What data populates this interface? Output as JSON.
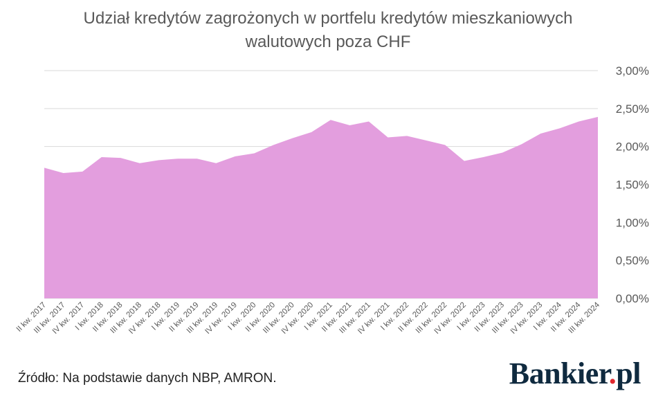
{
  "chart_data": {
    "type": "area",
    "title_line1": "Udział kredytów zagrożonych w portfelu kredytów mieszkaniowych",
    "title_line2": "walutowych poza CHF",
    "categories": [
      "II kw. 2017",
      "III kw. 2017",
      "IV kw. 2017",
      "I kw. 2018",
      "II kw. 2018",
      "III kw. 2018",
      "IV kw. 2018",
      "I kw. 2019",
      "II kw. 2019",
      "III kw. 2019",
      "IV kw. 2019",
      "I kw. 2020",
      "II kw. 2020",
      "III kw. 2020",
      "IV kw. 2020",
      "I kw. 2021",
      "II kw. 2021",
      "III kw. 2021",
      "IV kw. 2021",
      "I kw. 2022",
      "II kw. 2022",
      "III kw. 2022",
      "IV kw. 2022",
      "I kw. 2023",
      "II kw. 2023",
      "III kw. 2023",
      "IV kw. 2023",
      "I kw. 2024",
      "II kw. 2024",
      "III kw. 2024"
    ],
    "series": [
      {
        "values": [
          1.72,
          1.65,
          1.67,
          1.86,
          1.85,
          1.78,
          1.82,
          1.84,
          1.84,
          1.78,
          1.87,
          1.91,
          2.02,
          2.11,
          2.19,
          2.35,
          2.28,
          2.33,
          2.12,
          2.14,
          2.08,
          2.02,
          1.81,
          1.86,
          1.92,
          2.03,
          2.17,
          2.24,
          2.33,
          2.39
        ],
        "color": "#e39ede"
      }
    ],
    "ylim": [
      0,
      3.0
    ],
    "y_ticks": [
      "0,00%",
      "0,50%",
      "1,00%",
      "1,50%",
      "2,00%",
      "2,50%",
      "3,00%"
    ],
    "y_tick_values": [
      0,
      0.5,
      1.0,
      1.5,
      2.0,
      2.5,
      3.0
    ],
    "grid": true,
    "y_axis_side": "right"
  },
  "footer": {
    "source": "Źródło: Na podstawie danych NBP, AMRON.",
    "brand_main": "Bankier",
    "brand_dot": ".",
    "brand_tld": "pl"
  },
  "colors": {
    "area": "#e39ede",
    "text": "#595959",
    "grid": "#d9d9d9",
    "brand": "#0f2a3f",
    "brand_dot": "#e0282e"
  }
}
